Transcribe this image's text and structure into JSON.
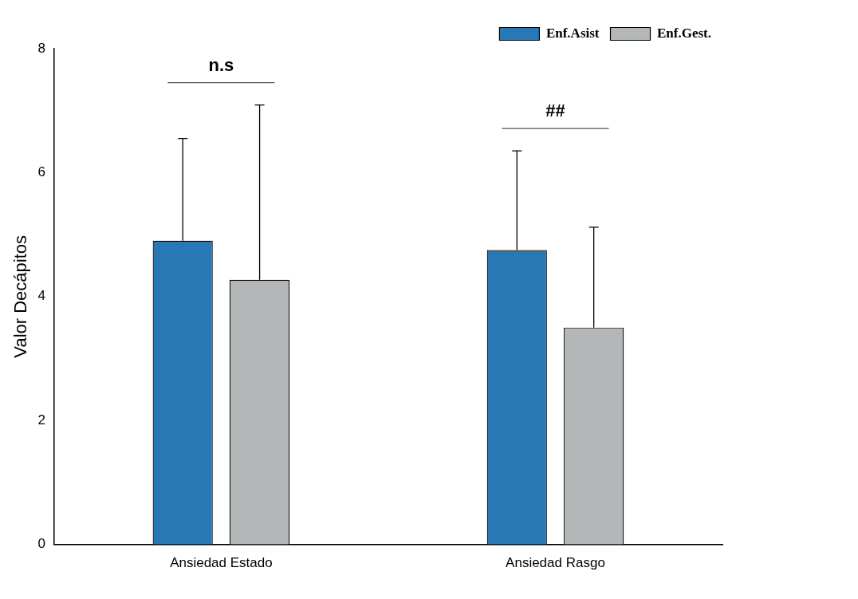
{
  "chart_data": {
    "type": "bar",
    "ylabel": "Valor Decápitos",
    "categories": [
      "Ansiedad Estado",
      "Ansiedad Rasgo"
    ],
    "series": [
      {
        "name": "Enf.Asist",
        "color": "#2878b5",
        "values": [
          4.9,
          4.75
        ],
        "errors": [
          1.65,
          1.6
        ]
      },
      {
        "name": "Enf.Gest.",
        "color": "#b4b7b8",
        "values": [
          4.27,
          3.5
        ],
        "errors": [
          2.82,
          1.62
        ]
      }
    ],
    "ylim": [
      0,
      8
    ],
    "yticks": [
      0,
      2,
      4,
      6,
      8
    ],
    "grid": false,
    "legend": "top right",
    "annotations": [
      "n.s",
      "##"
    ]
  }
}
